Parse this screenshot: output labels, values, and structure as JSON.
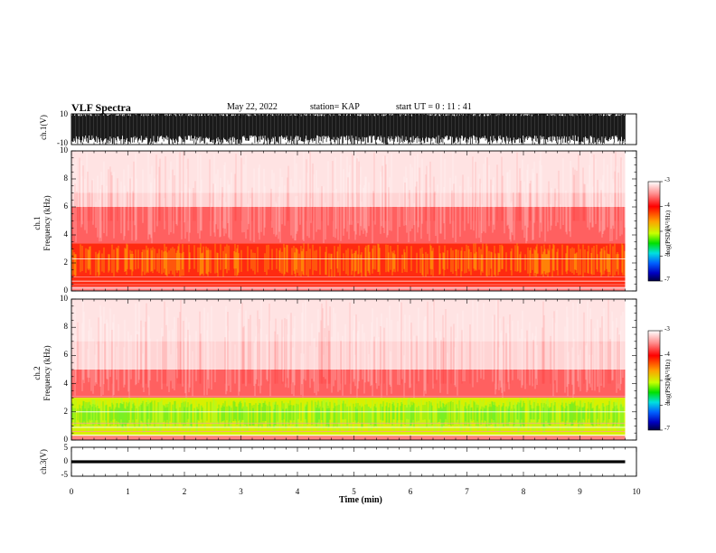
{
  "header": {
    "title": "VLF Spectra",
    "date": "May 22, 2022",
    "station": "station= KAP",
    "start": "start  UT =   0 : 11 : 41"
  },
  "chart_data": [
    {
      "id": "ch1-waveform",
      "type": "line",
      "ylabel": "ch.1(V)",
      "ylim": [
        -10,
        10
      ],
      "yticks": [
        "10",
        "-10"
      ],
      "xlim": [
        0,
        10
      ],
      "description_values": {
        "envelope_min": -10,
        "envelope_max": 10,
        "data_end_min": 9.8
      },
      "color": "#000000"
    },
    {
      "id": "ch1-spectrogram",
      "type": "heatmap",
      "ylabel_line1": "ch.1",
      "ylabel_line2": "Frequency (kHz)",
      "ylim": [
        0,
        10
      ],
      "yticks": [
        "0",
        "2",
        "4",
        "6",
        "8",
        "10"
      ],
      "xlim": [
        0,
        10
      ],
      "data_end_min": 9.8,
      "intensity_profile": {
        "strong_band_khz": [
          1.0,
          3.4
        ],
        "mid_band_khz": [
          3.4,
          6.0
        ],
        "weak_band_khz": [
          6.0,
          10.0
        ]
      },
      "colorbar": {
        "label": "log(PSD)(V²/Hz)",
        "range": [
          -7,
          -3
        ],
        "ticks": [
          "-3",
          "-4",
          "-5",
          "-6",
          "-7"
        ]
      }
    },
    {
      "id": "ch2-spectrogram",
      "type": "heatmap",
      "ylabel_line1": "ch.2",
      "ylabel_line2": "Frequency (kHz)",
      "ylim": [
        0,
        10
      ],
      "yticks": [
        "0",
        "2",
        "4",
        "6",
        "8",
        "10"
      ],
      "xlim": [
        0,
        10
      ],
      "data_end_min": 9.8,
      "intensity_profile": {
        "strong_band_khz": [
          0.5,
          3.0
        ],
        "mid_band_khz": [
          3.0,
          5.0
        ],
        "weak_band_khz": [
          5.0,
          10.0
        ]
      },
      "colorbar": {
        "label": "log(PSD)(V²/Hz)",
        "range": [
          -7,
          -3
        ],
        "ticks": [
          "-3",
          "-4",
          "-5",
          "-6",
          "-7"
        ]
      }
    },
    {
      "id": "ch3-waveform",
      "type": "line",
      "ylabel": "ch.3(V)",
      "ylim": [
        -5,
        5
      ],
      "yticks": [
        "5",
        "0",
        "-5"
      ],
      "xlim": [
        0,
        10
      ],
      "xlabel": "Time (min)",
      "xticks": [
        "0",
        "1",
        "2",
        "3",
        "4",
        "5",
        "6",
        "7",
        "8",
        "9",
        "10"
      ],
      "description_values": {
        "band_center": 0,
        "band_halfwidth": 0.5,
        "data_end_min": 9.8
      },
      "color": "#000000"
    }
  ],
  "colors": {
    "weak": "#ff9090",
    "mid": "#ff2020",
    "strong_yellow": "#ffd000",
    "strong_green": "#30ff30",
    "frame": "#000000"
  }
}
